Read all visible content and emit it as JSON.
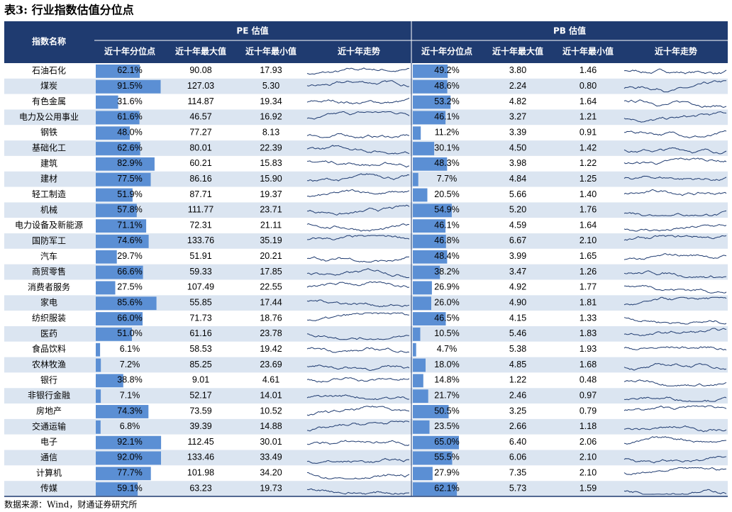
{
  "title": "表3: 行业指数估值分位点",
  "header": {
    "name": "指数名称",
    "pe": "PE 估值",
    "pb": "PB 估值",
    "pct": "近十年分位点",
    "max": "近十年最大值",
    "min": "近十年最小值",
    "trend": "近十年走势"
  },
  "rows": [
    {
      "name": "石油石化",
      "pe": {
        "pct": 62.1,
        "pct_label": "62.1%",
        "max": "90.08",
        "min": "17.93"
      },
      "pb": {
        "pct": 49.2,
        "pct_label": "49.2%",
        "max": "3.80",
        "min": "1.46"
      }
    },
    {
      "name": "煤炭",
      "pe": {
        "pct": 91.5,
        "pct_label": "91.5%",
        "max": "127.03",
        "min": "5.30"
      },
      "pb": {
        "pct": 48.6,
        "pct_label": "48.6%",
        "max": "2.24",
        "min": "0.80"
      }
    },
    {
      "name": "有色金属",
      "pe": {
        "pct": 31.6,
        "pct_label": "31.6%",
        "max": "114.87",
        "min": "19.34"
      },
      "pb": {
        "pct": 53.2,
        "pct_label": "53.2%",
        "max": "4.82",
        "min": "1.64"
      }
    },
    {
      "name": "电力及公用事业",
      "pe": {
        "pct": 61.6,
        "pct_label": "61.6%",
        "max": "46.57",
        "min": "16.92"
      },
      "pb": {
        "pct": 46.1,
        "pct_label": "46.1%",
        "max": "3.27",
        "min": "1.21"
      }
    },
    {
      "name": "钢铁",
      "pe": {
        "pct": 48.0,
        "pct_label": "48.0%",
        "max": "77.27",
        "min": "8.13"
      },
      "pb": {
        "pct": 11.2,
        "pct_label": "11.2%",
        "max": "3.39",
        "min": "0.91"
      }
    },
    {
      "name": "基础化工",
      "pe": {
        "pct": 62.6,
        "pct_label": "62.6%",
        "max": "80.01",
        "min": "22.39"
      },
      "pb": {
        "pct": 30.1,
        "pct_label": "30.1%",
        "max": "4.50",
        "min": "1.42"
      }
    },
    {
      "name": "建筑",
      "pe": {
        "pct": 82.9,
        "pct_label": "82.9%",
        "max": "60.21",
        "min": "15.83"
      },
      "pb": {
        "pct": 48.3,
        "pct_label": "48.3%",
        "max": "3.98",
        "min": "1.22"
      }
    },
    {
      "name": "建材",
      "pe": {
        "pct": 77.5,
        "pct_label": "77.5%",
        "max": "86.16",
        "min": "15.90"
      },
      "pb": {
        "pct": 7.7,
        "pct_label": "7.7%",
        "max": "4.84",
        "min": "1.25"
      }
    },
    {
      "name": "轻工制造",
      "pe": {
        "pct": 51.9,
        "pct_label": "51.9%",
        "max": "87.71",
        "min": "19.37"
      },
      "pb": {
        "pct": 20.5,
        "pct_label": "20.5%",
        "max": "5.66",
        "min": "1.40"
      }
    },
    {
      "name": "机械",
      "pe": {
        "pct": 57.8,
        "pct_label": "57.8%",
        "max": "111.77",
        "min": "23.71"
      },
      "pb": {
        "pct": 54.9,
        "pct_label": "54.9%",
        "max": "5.20",
        "min": "1.76"
      }
    },
    {
      "name": "电力设备及新能源",
      "pe": {
        "pct": 71.1,
        "pct_label": "71.1%",
        "max": "72.31",
        "min": "21.11"
      },
      "pb": {
        "pct": 46.1,
        "pct_label": "46.1%",
        "max": "4.59",
        "min": "1.64"
      }
    },
    {
      "name": "国防军工",
      "pe": {
        "pct": 74.6,
        "pct_label": "74.6%",
        "max": "133.76",
        "min": "35.19"
      },
      "pb": {
        "pct": 46.8,
        "pct_label": "46.8%",
        "max": "6.67",
        "min": "2.10"
      }
    },
    {
      "name": "汽车",
      "pe": {
        "pct": 29.7,
        "pct_label": "29.7%",
        "max": "51.91",
        "min": "20.21"
      },
      "pb": {
        "pct": 48.4,
        "pct_label": "48.4%",
        "max": "3.99",
        "min": "1.65"
      }
    },
    {
      "name": "商贸零售",
      "pe": {
        "pct": 66.6,
        "pct_label": "66.6%",
        "max": "59.33",
        "min": "17.85"
      },
      "pb": {
        "pct": 38.2,
        "pct_label": "38.2%",
        "max": "3.47",
        "min": "1.26"
      }
    },
    {
      "name": "消费者服务",
      "pe": {
        "pct": 27.5,
        "pct_label": "27.5%",
        "max": "107.49",
        "min": "22.55"
      },
      "pb": {
        "pct": 26.9,
        "pct_label": "26.9%",
        "max": "4.92",
        "min": "1.77"
      }
    },
    {
      "name": "家电",
      "pe": {
        "pct": 85.6,
        "pct_label": "85.6%",
        "max": "55.85",
        "min": "17.44"
      },
      "pb": {
        "pct": 26.0,
        "pct_label": "26.0%",
        "max": "4.90",
        "min": "1.81"
      }
    },
    {
      "name": "纺织服装",
      "pe": {
        "pct": 66.0,
        "pct_label": "66.0%",
        "max": "71.73",
        "min": "18.76"
      },
      "pb": {
        "pct": 46.5,
        "pct_label": "46.5%",
        "max": "4.15",
        "min": "1.33"
      }
    },
    {
      "name": "医药",
      "pe": {
        "pct": 51.0,
        "pct_label": "51.0%",
        "max": "61.16",
        "min": "23.78"
      },
      "pb": {
        "pct": 10.5,
        "pct_label": "10.5%",
        "max": "5.46",
        "min": "1.83"
      }
    },
    {
      "name": "食品饮料",
      "pe": {
        "pct": 6.1,
        "pct_label": "6.1%",
        "max": "58.53",
        "min": "19.42"
      },
      "pb": {
        "pct": 4.7,
        "pct_label": "4.7%",
        "max": "5.38",
        "min": "1.93"
      }
    },
    {
      "name": "农林牧渔",
      "pe": {
        "pct": 7.2,
        "pct_label": "7.2%",
        "max": "85.25",
        "min": "23.69"
      },
      "pb": {
        "pct": 18.0,
        "pct_label": "18.0%",
        "max": "4.85",
        "min": "1.68"
      }
    },
    {
      "name": "银行",
      "pe": {
        "pct": 38.8,
        "pct_label": "38.8%",
        "max": "9.01",
        "min": "4.61"
      },
      "pb": {
        "pct": 14.8,
        "pct_label": "14.8%",
        "max": "1.22",
        "min": "0.48"
      }
    },
    {
      "name": "非银行金融",
      "pe": {
        "pct": 7.1,
        "pct_label": "7.1%",
        "max": "52.17",
        "min": "14.01"
      },
      "pb": {
        "pct": 21.7,
        "pct_label": "21.7%",
        "max": "2.46",
        "min": "0.97"
      }
    },
    {
      "name": "房地产",
      "pe": {
        "pct": 74.3,
        "pct_label": "74.3%",
        "max": "73.59",
        "min": "10.52"
      },
      "pb": {
        "pct": 50.5,
        "pct_label": "50.5%",
        "max": "3.25",
        "min": "0.79"
      }
    },
    {
      "name": "交通运输",
      "pe": {
        "pct": 6.8,
        "pct_label": "6.8%",
        "max": "39.39",
        "min": "14.88"
      },
      "pb": {
        "pct": 23.5,
        "pct_label": "23.5%",
        "max": "2.66",
        "min": "1.18"
      }
    },
    {
      "name": "电子",
      "pe": {
        "pct": 92.1,
        "pct_label": "92.1%",
        "max": "112.45",
        "min": "30.01"
      },
      "pb": {
        "pct": 65.0,
        "pct_label": "65.0%",
        "max": "6.40",
        "min": "2.06"
      }
    },
    {
      "name": "通信",
      "pe": {
        "pct": 92.0,
        "pct_label": "92.0%",
        "max": "133.46",
        "min": "33.49"
      },
      "pb": {
        "pct": 55.5,
        "pct_label": "55.5%",
        "max": "6.06",
        "min": "2.10"
      }
    },
    {
      "name": "计算机",
      "pe": {
        "pct": 77.7,
        "pct_label": "77.7%",
        "max": "101.98",
        "min": "34.20"
      },
      "pb": {
        "pct": 27.9,
        "pct_label": "27.9%",
        "max": "7.35",
        "min": "2.10"
      }
    },
    {
      "name": "传媒",
      "pe": {
        "pct": 59.1,
        "pct_label": "59.1%",
        "max": "63.23",
        "min": "19.73"
      },
      "pb": {
        "pct": 62.1,
        "pct_label": "62.1%",
        "max": "5.73",
        "min": "1.59"
      }
    }
  ],
  "source": "数据来源：Wind，财通证券研究所"
}
